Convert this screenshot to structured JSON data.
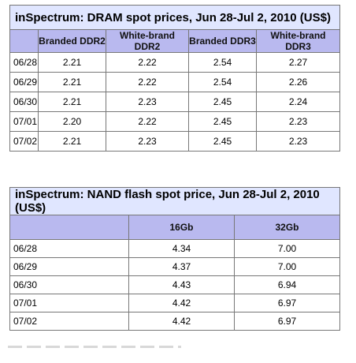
{
  "dram": {
    "title": "inSpectrum: DRAM spot prices, Jun 28-Jul 2, 2010 (US$)",
    "columns": [
      "",
      "Branded DDR2",
      "White-brand DDR2",
      "Branded DDR3",
      "White-brand DDR3"
    ],
    "rows": [
      [
        "06/28",
        "2.21",
        "2.22",
        "2.54",
        "2.27"
      ],
      [
        "06/29",
        "2.21",
        "2.22",
        "2.54",
        "2.26"
      ],
      [
        "06/30",
        "2.21",
        "2.23",
        "2.45",
        "2.24"
      ],
      [
        "07/01",
        "2.20",
        "2.22",
        "2.45",
        "2.23"
      ],
      [
        "07/02",
        "2.21",
        "2.23",
        "2.45",
        "2.23"
      ]
    ]
  },
  "nand": {
    "title": "inSpectrum: NAND flash spot price, Jun 28-Jul 2, 2010 (US$)",
    "columns": [
      "",
      "16Gb",
      "32Gb"
    ],
    "rows": [
      [
        "06/28",
        "4.34",
        "7.00"
      ],
      [
        "06/29",
        "4.37",
        "7.00"
      ],
      [
        "06/30",
        "4.43",
        "6.94"
      ],
      [
        "07/01",
        "4.42",
        "6.97"
      ],
      [
        "07/02",
        "4.42",
        "6.97"
      ]
    ]
  }
}
